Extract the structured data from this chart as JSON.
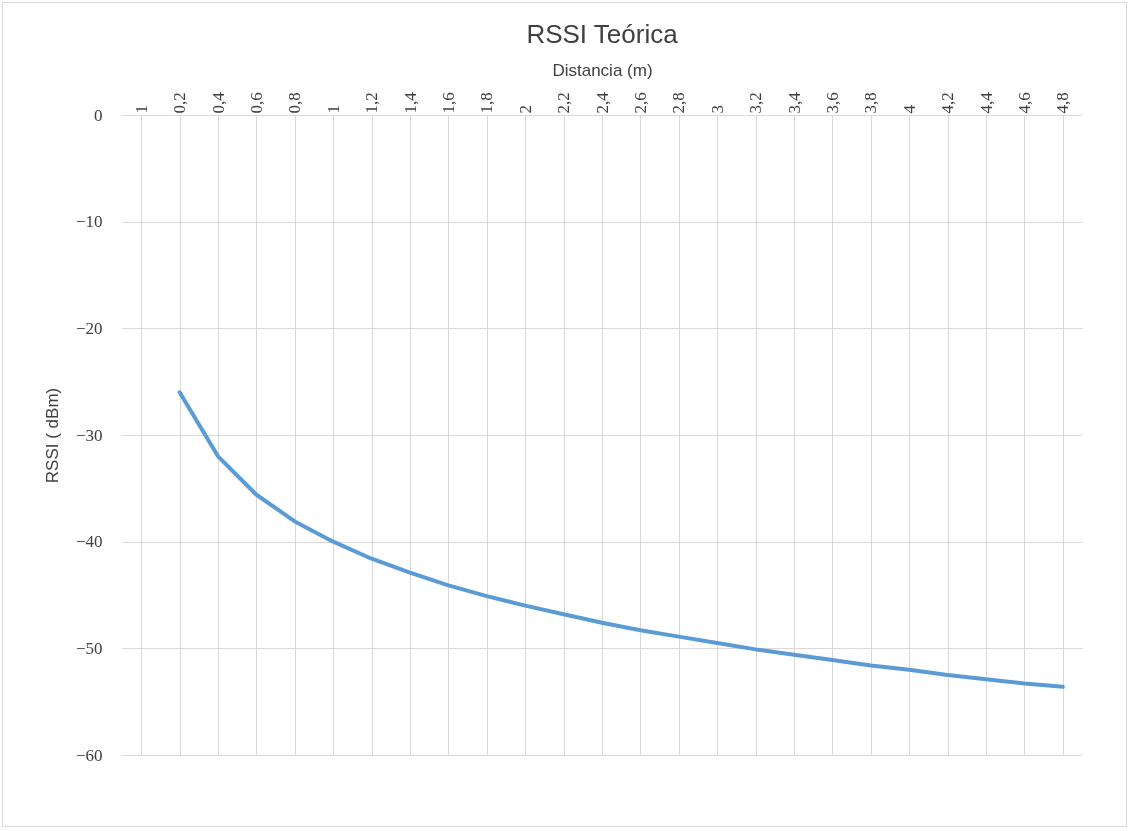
{
  "chart_data": {
    "type": "line",
    "title": "RSSI Teórica",
    "xlabel": "Distancia (m)",
    "ylabel": "RSSI ( dBm)",
    "categories": [
      "1",
      "0,2",
      "0,4",
      "0,6",
      "0,8",
      "1",
      "1,2",
      "1,4",
      "1,6",
      "1,8",
      "2",
      "2,2",
      "2,4",
      "2,6",
      "2,8",
      "3",
      "3,2",
      "3,4",
      "3,6",
      "3,8",
      "4",
      "4,2",
      "4,4",
      "4,6",
      "4,8"
    ],
    "series": [
      {
        "color": "#5b9bd5",
        "values": [
          null,
          -26,
          -32,
          -35.6,
          -38.1,
          -40,
          -41.6,
          -42.9,
          -44.1,
          -45.1,
          -46,
          -46.8,
          -47.6,
          -48.3,
          -48.9,
          -49.5,
          -50.1,
          -50.6,
          -51.1,
          -51.6,
          -52,
          -52.5,
          -52.9,
          -53.3,
          -53.6
        ]
      }
    ],
    "ylim": [
      -60,
      0
    ],
    "yticks": [
      0,
      -10,
      -20,
      -30,
      -40,
      -50,
      -60
    ],
    "grid": true,
    "marker": "none",
    "line_style": "solid"
  }
}
